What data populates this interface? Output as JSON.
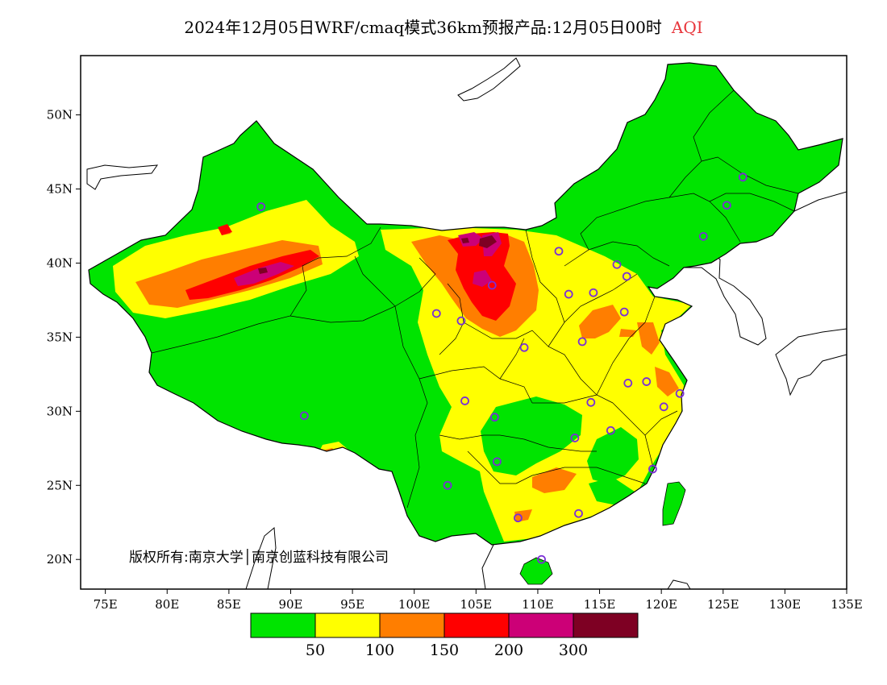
{
  "title": {
    "main": "2024年12月05日WRF/cmaq模式36km预报产品:12月05日00时",
    "variable": "AQI",
    "variable_color": "#e8363c"
  },
  "map": {
    "lon_range": [
      73,
      135
    ],
    "lat_range": [
      18,
      54
    ],
    "lon_ticks": [
      "75E",
      "80E",
      "85E",
      "90E",
      "95E",
      "100E",
      "105E",
      "110E",
      "115E",
      "120E",
      "125E",
      "130E",
      "135E"
    ],
    "lon_values": [
      75,
      80,
      85,
      90,
      95,
      100,
      105,
      110,
      115,
      120,
      125,
      130,
      135
    ],
    "lat_ticks": [
      "20N",
      "25N",
      "30N",
      "35N",
      "40N",
      "45N",
      "50N"
    ],
    "lat_values": [
      20,
      25,
      30,
      35,
      40,
      45,
      50
    ],
    "copyright": "版权所有:南京大学│南京创蓝科技有限公司",
    "station_color": "#7a2fd6",
    "stations": [
      [
        87.6,
        43.8
      ],
      [
        91.1,
        29.7
      ],
      [
        101.8,
        36.6
      ],
      [
        103.8,
        36.1
      ],
      [
        106.3,
        38.5
      ],
      [
        104.1,
        30.7
      ],
      [
        106.5,
        29.6
      ],
      [
        106.7,
        26.6
      ],
      [
        102.7,
        25.0
      ],
      [
        108.4,
        22.8
      ],
      [
        110.3,
        20.0
      ],
      [
        111.7,
        40.8
      ],
      [
        112.5,
        37.9
      ],
      [
        114.5,
        38.0
      ],
      [
        116.4,
        39.9
      ],
      [
        117.2,
        39.1
      ],
      [
        117.0,
        36.7
      ],
      [
        113.6,
        34.7
      ],
      [
        108.9,
        34.3
      ],
      [
        114.3,
        30.6
      ],
      [
        113.0,
        28.2
      ],
      [
        115.9,
        28.7
      ],
      [
        117.3,
        31.9
      ],
      [
        118.8,
        32.0
      ],
      [
        120.2,
        30.3
      ],
      [
        121.5,
        31.2
      ],
      [
        119.3,
        26.1
      ],
      [
        113.3,
        23.1
      ],
      [
        123.4,
        41.8
      ],
      [
        125.3,
        43.9
      ],
      [
        126.6,
        45.8
      ]
    ]
  },
  "legend": {
    "colors": [
      "#00e400",
      "#ffff00",
      "#ff7e00",
      "#ff0000",
      "#cc0077",
      "#7e0023"
    ],
    "labels": [
      "50",
      "100",
      "150",
      "200",
      "300"
    ],
    "categories": [
      "0-50",
      "50-100",
      "100-150",
      "150-200",
      "200-300",
      ">300"
    ]
  }
}
